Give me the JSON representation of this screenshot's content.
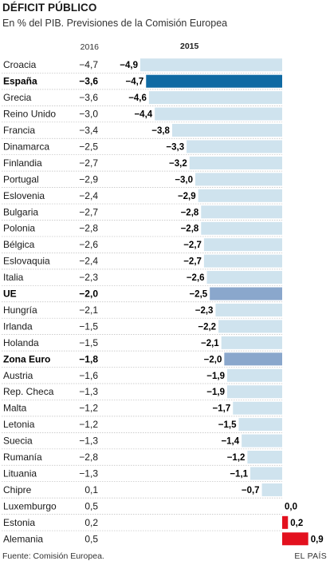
{
  "title": "DÉFICIT PÚBLICO",
  "subtitle": "En % del PIB. Previsiones de la Comisión Europea",
  "source": "Fuente: Comisión Europea.",
  "brand": "EL PAÍS",
  "colors": {
    "bar_default": "#cfe3ee",
    "bar_spain": "#0f6aa3",
    "bar_aggregate": "#8aa7cc",
    "bar_positive": "#e3101e"
  },
  "chart_data": {
    "type": "bar",
    "orientation": "horizontal",
    "column_headers": {
      "y2016": "2016",
      "y2015": "2015"
    },
    "value_range": [
      -4.9,
      0.9
    ],
    "rows": [
      {
        "label": "Croacia",
        "v2016": "−4,7",
        "v2015_label": "−4,9",
        "v2015": -4.9,
        "style": "default"
      },
      {
        "label": "España",
        "v2016": "−3,6",
        "v2015_label": "−4,7",
        "v2015": -4.7,
        "style": "spain"
      },
      {
        "label": "Grecia",
        "v2016": "−3,6",
        "v2015_label": "−4,6",
        "v2015": -4.6,
        "style": "default"
      },
      {
        "label": "Reino Unido",
        "v2016": "−3,0",
        "v2015_label": "−4,4",
        "v2015": -4.4,
        "style": "default"
      },
      {
        "label": "Francia",
        "v2016": "−3,4",
        "v2015_label": "−3,8",
        "v2015": -3.8,
        "style": "default"
      },
      {
        "label": "Dinamarca",
        "v2016": "−2,5",
        "v2015_label": "−3,3",
        "v2015": -3.3,
        "style": "default"
      },
      {
        "label": "Finlandia",
        "v2016": "−2,7",
        "v2015_label": "−3,2",
        "v2015": -3.2,
        "style": "default"
      },
      {
        "label": "Portugal",
        "v2016": "−2,9",
        "v2015_label": "−3,0",
        "v2015": -3.0,
        "style": "default"
      },
      {
        "label": "Eslovenia",
        "v2016": "−2,4",
        "v2015_label": "−2,9",
        "v2015": -2.9,
        "style": "default"
      },
      {
        "label": "Bulgaria",
        "v2016": "−2,7",
        "v2015_label": "−2,8",
        "v2015": -2.8,
        "style": "default"
      },
      {
        "label": "Polonia",
        "v2016": "−2,8",
        "v2015_label": "−2,8",
        "v2015": -2.8,
        "style": "default"
      },
      {
        "label": "Bélgica",
        "v2016": "−2,6",
        "v2015_label": "−2,7",
        "v2015": -2.7,
        "style": "default"
      },
      {
        "label": "Eslovaquia",
        "v2016": "−2,4",
        "v2015_label": "−2,7",
        "v2015": -2.7,
        "style": "default"
      },
      {
        "label": "Italia",
        "v2016": "−2,3",
        "v2015_label": "−2,6",
        "v2015": -2.6,
        "style": "default"
      },
      {
        "label": "UE",
        "v2016": "−2,0",
        "v2015_label": "−2,5",
        "v2015": -2.5,
        "style": "aggregate"
      },
      {
        "label": "Hungría",
        "v2016": "−2,1",
        "v2015_label": "−2,3",
        "v2015": -2.3,
        "style": "default"
      },
      {
        "label": "Irlanda",
        "v2016": "−1,5",
        "v2015_label": "−2,2",
        "v2015": -2.2,
        "style": "default"
      },
      {
        "label": "Holanda",
        "v2016": "−1,5",
        "v2015_label": "−2,1",
        "v2015": -2.1,
        "style": "default"
      },
      {
        "label": "Zona Euro",
        "v2016": "−1,8",
        "v2015_label": "−2,0",
        "v2015": -2.0,
        "style": "aggregate"
      },
      {
        "label": "Austria",
        "v2016": "−1,6",
        "v2015_label": "−1,9",
        "v2015": -1.9,
        "style": "default"
      },
      {
        "label": "Rep. Checa",
        "v2016": "−1,3",
        "v2015_label": "−1,9",
        "v2015": -1.9,
        "style": "default"
      },
      {
        "label": "Malta",
        "v2016": "−1,2",
        "v2015_label": "−1,7",
        "v2015": -1.7,
        "style": "default"
      },
      {
        "label": "Letonia",
        "v2016": "−1,2",
        "v2015_label": "−1,5",
        "v2015": -1.5,
        "style": "default"
      },
      {
        "label": "Suecia",
        "v2016": "−1,3",
        "v2015_label": "−1,4",
        "v2015": -1.4,
        "style": "default"
      },
      {
        "label": "Rumanía",
        "v2016": "−2,8",
        "v2015_label": "−1,2",
        "v2015": -1.2,
        "style": "default"
      },
      {
        "label": "Lituania",
        "v2016": "−1,3",
        "v2015_label": "−1,1",
        "v2015": -1.1,
        "style": "default"
      },
      {
        "label": "Chipre",
        "v2016": "0,1",
        "v2015_label": "−0,7",
        "v2015": -0.7,
        "style": "default"
      },
      {
        "label": "Luxemburgo",
        "v2016": "0,5",
        "v2015_label": "0,0",
        "v2015": 0.0,
        "style": "positive"
      },
      {
        "label": "Estonia",
        "v2016": "0,2",
        "v2015_label": "0,2",
        "v2015": 0.2,
        "style": "positive"
      },
      {
        "label": "Alemania",
        "v2016": "0,5",
        "v2015_label": "0,9",
        "v2015": 0.9,
        "style": "positive"
      }
    ]
  }
}
